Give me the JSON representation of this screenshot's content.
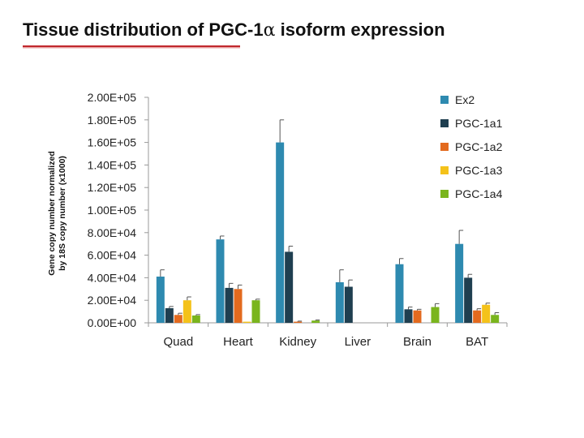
{
  "slide": {
    "title_main": "Tissue distribution of PGC-1",
    "title_alpha": "α",
    "title_rest": " isoform expression",
    "underline_color": "#c0282d"
  },
  "chart_data": {
    "type": "bar",
    "title": "",
    "ylabel_line1": "Gene copy number normalized",
    "ylabel_line2": "by 18S copy number (x1000)",
    "xlabel": "",
    "categories": [
      "Quad",
      "Heart",
      "Kidney",
      "Liver",
      "Brain",
      "BAT"
    ],
    "ylim": [
      0,
      200000
    ],
    "yticks": [
      0,
      20000,
      40000,
      60000,
      80000,
      100000,
      120000,
      140000,
      160000,
      180000,
      200000
    ],
    "ytick_labels": [
      "0.00E+00",
      "2.00E+04",
      "4.00E+04",
      "6.00E+04",
      "8.00E+04",
      "1.00E+05",
      "1.20E+05",
      "1.40E+05",
      "1.60E+05",
      "1.80E+05",
      "2.00E+05"
    ],
    "legend_position": "top-right",
    "series": [
      {
        "name": "Ex2",
        "color": "#2e8ab0",
        "values": [
          41000,
          74000,
          160000,
          36000,
          52000,
          70000
        ],
        "errors": [
          6000,
          3000,
          20000,
          11000,
          5000,
          12000
        ]
      },
      {
        "name": "PGC-1a1",
        "color": "#1f3f50",
        "values": [
          13000,
          31000,
          63000,
          32000,
          12000,
          40000
        ],
        "errors": [
          1500,
          4000,
          5000,
          6000,
          2000,
          3000
        ]
      },
      {
        "name": "PGC-1a2",
        "color": "#e36a1e",
        "values": [
          7000,
          30000,
          1000,
          0,
          11000,
          11000
        ],
        "errors": [
          1500,
          3500,
          500,
          0,
          1000,
          1500
        ]
      },
      {
        "name": "PGC-1a3",
        "color": "#f4c21a",
        "values": [
          20000,
          1000,
          0,
          0,
          0,
          16000
        ],
        "errors": [
          3000,
          0,
          0,
          0,
          0,
          1500
        ]
      },
      {
        "name": "PGC-1a4",
        "color": "#7ab51d",
        "values": [
          6500,
          20000,
          2000,
          0,
          14000,
          7000
        ],
        "errors": [
          800,
          1000,
          500,
          0,
          3000,
          2000
        ]
      }
    ]
  }
}
